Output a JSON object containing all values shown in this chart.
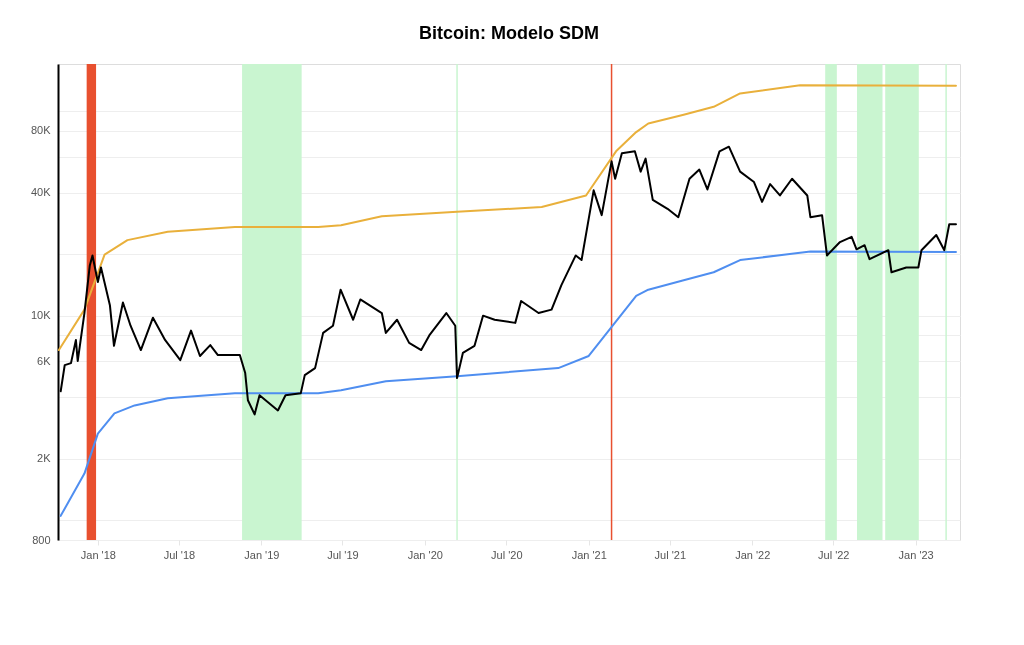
{
  "chart_data": {
    "type": "line",
    "title": "Bitcoin: Modelo SDM",
    "log": "y",
    "grid": "y",
    "line_style": "solid",
    "marker": "none",
    "xlim": [
      "2017-10-04",
      "2023-04-10"
    ],
    "xticks": [
      {
        "value": "2018-01-01",
        "label": "Jan '18"
      },
      {
        "value": "2018-07-01",
        "label": "Jul '18"
      },
      {
        "value": "2019-01-01",
        "label": "Jan '19"
      },
      {
        "value": "2019-07-01",
        "label": "Jul '19"
      },
      {
        "value": "2020-01-01",
        "label": "Jan '20"
      },
      {
        "value": "2020-07-01",
        "label": "Jul '20"
      },
      {
        "value": "2021-01-01",
        "label": "Jan '21"
      },
      {
        "value": "2021-07-01",
        "label": "Jul '21"
      },
      {
        "value": "2022-01-01",
        "label": "Jan '22"
      },
      {
        "value": "2022-07-01",
        "label": "Jul '22"
      },
      {
        "value": "2023-01-01",
        "label": "Jan '23"
      }
    ],
    "ylim": [
      800,
      170000
    ],
    "yticks": [
      800,
      {
        "value": 1000,
        "label": null
      },
      {
        "value": 2000,
        "label": "2K"
      },
      {
        "value": 4000,
        "label": null
      },
      {
        "value": 6000,
        "label": "6K"
      },
      {
        "value": 8000,
        "label": null
      },
      {
        "value": 10000,
        "label": "10K"
      },
      {
        "value": 20000,
        "label": null
      },
      {
        "value": 40000,
        "label": "40K"
      },
      {
        "value": 60000,
        "label": null
      },
      {
        "value": 80000,
        "label": "80K"
      },
      {
        "value": 100000,
        "label": null
      }
    ],
    "bands": [
      {
        "axis": "x",
        "from": "2017-12-07",
        "to": "2017-12-28",
        "color": "#e8502f"
      },
      {
        "axis": "x",
        "from": "2018-11-19",
        "to": "2019-04-01",
        "color": "#c9f5d0"
      },
      {
        "axis": "x",
        "from": "2022-06-13",
        "to": "2022-07-09",
        "color": "#c9f5d0"
      },
      {
        "axis": "x",
        "from": "2022-08-23",
        "to": "2022-10-19",
        "color": "#c9f5d0"
      },
      {
        "axis": "x",
        "from": "2022-10-25",
        "to": "2023-01-08",
        "color": "#c9f5d0"
      }
    ],
    "ref_lines": [
      {
        "axis": "x",
        "value": "2021-02-21",
        "color": "#e8502f"
      },
      {
        "axis": "x",
        "value": "2020-03-13",
        "color": "#c9f5d0"
      },
      {
        "axis": "x",
        "value": "2023-03-10",
        "color": "#c9f5d0"
      }
    ],
    "series": [
      {
        "color": "#e9b03b",
        "x": [
          "2017-10-06",
          "2017-12-02",
          "2018-01-16",
          "2018-03-08",
          "2018-06-06",
          "2018-11-03",
          "2019-05-08",
          "2019-06-28",
          "2019-09-27",
          "2020-03-13",
          "2020-09-18",
          "2020-12-26",
          "2021-03-03",
          "2021-04-17",
          "2021-05-14",
          "2021-08-01",
          "2021-10-07",
          "2021-12-05",
          "2022-04-18",
          "2023-04-01"
        ],
        "values": [
          6790,
          10700,
          19900,
          23400,
          25700,
          27100,
          27100,
          27700,
          30600,
          32200,
          34000,
          38700,
          63600,
          79000,
          87000,
          96000,
          105000,
          122000,
          134000,
          133000
        ]
      },
      {
        "color": "#4f8ef0",
        "x": [
          "2017-10-10",
          "2017-12-02",
          "2018-01-01",
          "2018-02-07",
          "2018-03-24",
          "2018-06-06",
          "2018-11-03",
          "2019-05-08",
          "2019-06-28",
          "2019-10-06",
          "2020-03-13",
          "2020-10-25",
          "2021-01-01",
          "2021-04-17",
          "2021-05-14",
          "2021-08-01",
          "2021-10-07",
          "2021-12-05",
          "2022-05-11",
          "2023-04-01"
        ],
        "values": [
          1050,
          1690,
          2650,
          3330,
          3640,
          3950,
          4170,
          4170,
          4320,
          4780,
          5060,
          5540,
          6350,
          12500,
          13400,
          14900,
          16300,
          18700,
          20600,
          20500
        ]
      },
      {
        "color": "#000000",
        "x": [
          "2017-10-10",
          "2017-10-19",
          "2017-11-02",
          "2017-11-13",
          "2017-11-17",
          "2017-12-02",
          "2017-12-14",
          "2017-12-20",
          "2018-01-01",
          "2018-01-08",
          "2018-01-28",
          "2018-02-06",
          "2018-02-26",
          "2018-03-15",
          "2018-04-07",
          "2018-05-04",
          "2018-05-31",
          "2018-07-04",
          "2018-07-28",
          "2018-08-17",
          "2018-09-09",
          "2018-09-26",
          "2018-11-14",
          "2018-11-26",
          "2018-12-02",
          "2018-12-17",
          "2018-12-28",
          "2019-02-07",
          "2019-02-24",
          "2019-03-30",
          "2019-04-08",
          "2019-05-01",
          "2019-05-19",
          "2019-06-10",
          "2019-06-27",
          "2019-07-25",
          "2019-08-10",
          "2019-09-27",
          "2019-10-06",
          "2019-10-31",
          "2019-11-27",
          "2019-12-24",
          "2020-01-11",
          "2020-02-18",
          "2020-03-09",
          "2020-03-13",
          "2020-03-26",
          "2020-04-21",
          "2020-05-10",
          "2020-06-05",
          "2020-07-21",
          "2020-08-03",
          "2020-09-11",
          "2020-10-10",
          "2020-11-01",
          "2020-12-03",
          "2020-12-16",
          "2021-01-12",
          "2021-01-30",
          "2021-02-21",
          "2021-03-01",
          "2021-03-16",
          "2021-04-14",
          "2021-04-27",
          "2021-05-08",
          "2021-05-24",
          "2021-06-26",
          "2021-07-20",
          "2021-08-14",
          "2021-09-05",
          "2021-09-23",
          "2021-10-20",
          "2021-11-10",
          "2021-12-05",
          "2022-01-05",
          "2022-01-23",
          "2022-02-10",
          "2022-03-04",
          "2022-03-31",
          "2022-05-04",
          "2022-05-11",
          "2022-06-06",
          "2022-06-17",
          "2022-07-16",
          "2022-08-11",
          "2022-08-22",
          "2022-09-09",
          "2022-09-20",
          "2022-11-01",
          "2022-11-08",
          "2022-12-11",
          "2023-01-07",
          "2023-01-14",
          "2023-02-16",
          "2023-03-06",
          "2023-03-17",
          "2023-04-01"
        ],
        "values": [
          4270,
          5730,
          5860,
          7600,
          6000,
          10300,
          17600,
          19700,
          14600,
          17200,
          11200,
          7120,
          11600,
          8930,
          6790,
          9770,
          7610,
          6060,
          8450,
          6350,
          7180,
          6420,
          6420,
          5240,
          3860,
          3290,
          4080,
          3440,
          4080,
          4170,
          5120,
          5540,
          8240,
          8930,
          13400,
          9550,
          12000,
          10300,
          8230,
          9550,
          7360,
          6790,
          8000,
          10300,
          8930,
          4950,
          6570,
          7120,
          10000,
          9550,
          9220,
          11800,
          10300,
          10700,
          14100,
          19700,
          18700,
          41000,
          31000,
          56800,
          46700,
          62300,
          63600,
          50600,
          58600,
          36800,
          33300,
          30300,
          46700,
          51800,
          41400,
          63600,
          67000,
          50600,
          45000,
          36000,
          44000,
          38700,
          46700,
          38700,
          30300,
          31000,
          19700,
          22900,
          24300,
          21100,
          22100,
          18900,
          20900,
          16300,
          17200,
          17200,
          20900,
          24800,
          20900,
          28000,
          28000
        ]
      }
    ]
  }
}
